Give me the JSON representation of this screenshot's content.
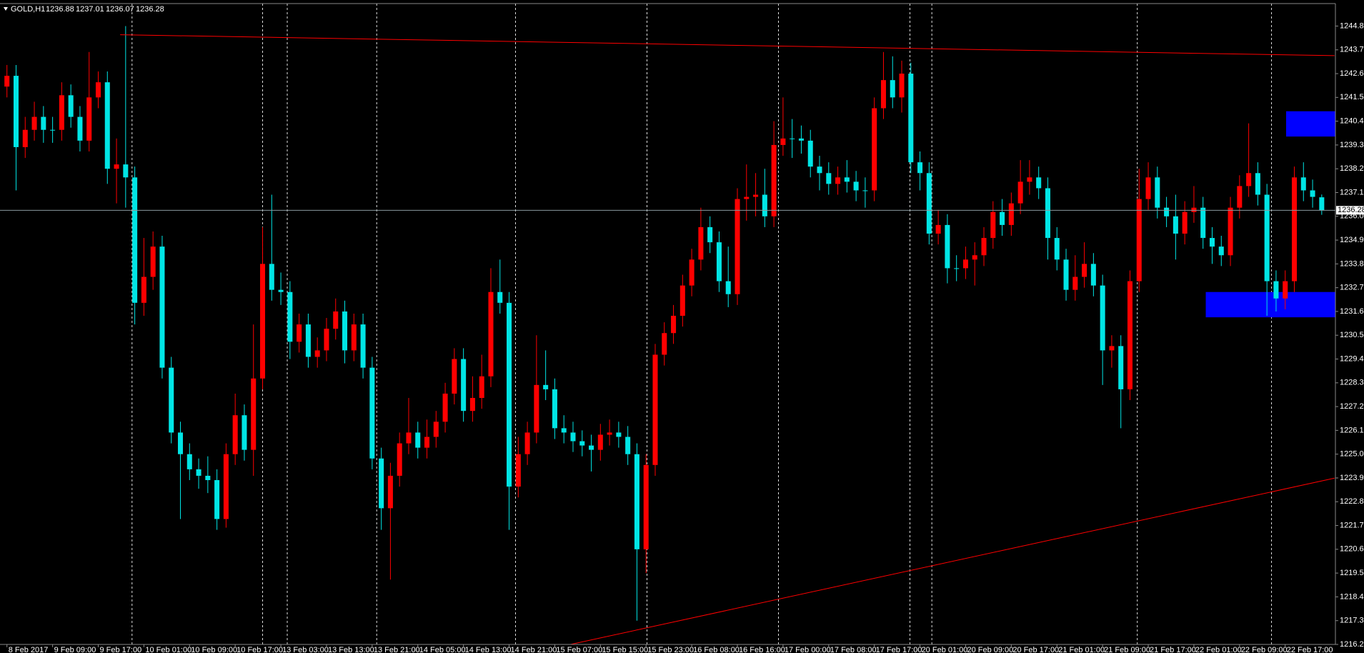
{
  "chart_data": {
    "type": "candlestick",
    "title": "GOLD,H1",
    "bull_color": "#ff0000",
    "bear_color": "#00e5e5",
    "open": [
      1242.0,
      1242.5,
      1239.2,
      1240.0,
      1240.6,
      1240.0,
      1240.0,
      1241.6,
      1240.6,
      1239.5,
      1241.5,
      1242.2,
      1238.2,
      1238.4,
      1237.8,
      1232.0,
      1233.2,
      1234.6,
      1229.0,
      1226.0,
      1225.0,
      1224.3,
      1224.0,
      1223.8,
      1222.0,
      1225.0,
      1226.8,
      1225.2,
      1228.5,
      1233.8,
      1232.6,
      1232.5,
      1230.2,
      1231.0,
      1229.5,
      1229.8,
      1230.8,
      1231.6,
      1229.8,
      1231.0,
      1229.0,
      1224.8,
      1222.5,
      1224.0,
      1225.5,
      1226.0,
      1225.3,
      1225.8,
      1226.5,
      1227.8,
      1229.4,
      1227.0,
      1227.6,
      1228.6,
      1232.5,
      1232.0,
      1223.5,
      1225.0,
      1226.0,
      1228.2,
      1228.0,
      1226.2,
      1226.0,
      1225.6,
      1225.4,
      1225.2,
      1225.9,
      1226.0,
      1225.8,
      1225.0,
      1220.6,
      1224.5,
      1229.6,
      1230.6,
      1231.4,
      1232.8,
      1234.0,
      1235.5,
      1234.8,
      1233.0,
      1232.4,
      1236.8,
      1236.9,
      1237.0,
      1236.0,
      1239.3,
      1239.6,
      1239.6,
      1239.5,
      1238.3,
      1238.0,
      1237.5,
      1237.8,
      1237.6,
      1237.2,
      1237.2,
      1241.0,
      1242.3,
      1241.5,
      1242.6,
      1238.5,
      1238.0,
      1235.2,
      1235.6,
      1233.6,
      1233.6,
      1234.0,
      1234.2,
      1235.0,
      1236.2,
      1235.6,
      1236.6,
      1237.6,
      1237.8,
      1237.3,
      1235.0,
      1234.0,
      1232.6,
      1233.2,
      1233.8,
      1232.8,
      1229.8,
      1230.0,
      1228.0,
      1233.0,
      1236.8,
      1237.8,
      1236.4,
      1236.0,
      1235.2,
      1236.2,
      1236.4,
      1235.0,
      1234.6,
      1234.2,
      1236.4,
      1237.4,
      1238.0,
      1237.0,
      1233.0,
      1232.2,
      1233.0,
      1237.8,
      1237.2,
      1236.88
    ],
    "high": [
      1243.0,
      1243.0,
      1240.6,
      1241.3,
      1241.1,
      1240.6,
      1242.2,
      1242.1,
      1241.1,
      1243.6,
      1242.7,
      1242.7,
      1239.6,
      1244.8,
      1238.3,
      1235.0,
      1235.3,
      1235.1,
      1229.5,
      1226.5,
      1225.5,
      1224.8,
      1224.9,
      1224.3,
      1225.5,
      1227.8,
      1227.3,
      1231.0,
      1235.5,
      1237.0,
      1233.4,
      1233.0,
      1231.5,
      1231.5,
      1230.4,
      1231.3,
      1232.2,
      1232.1,
      1231.5,
      1231.5,
      1229.5,
      1225.3,
      1224.6,
      1226.0,
      1227.6,
      1226.5,
      1226.6,
      1227.0,
      1228.3,
      1229.9,
      1229.9,
      1228.6,
      1229.6,
      1233.6,
      1234.0,
      1232.5,
      1225.8,
      1226.5,
      1230.5,
      1229.8,
      1228.5,
      1226.8,
      1226.5,
      1226.1,
      1225.9,
      1226.4,
      1226.6,
      1226.5,
      1226.3,
      1225.5,
      1225.0,
      1230.1,
      1231.1,
      1231.9,
      1233.3,
      1234.5,
      1236.4,
      1236.0,
      1235.3,
      1234.6,
      1237.3,
      1238.4,
      1238.0,
      1238.2,
      1240.4,
      1241.5,
      1240.5,
      1240.2,
      1240.0,
      1238.8,
      1238.5,
      1238.3,
      1238.6,
      1238.1,
      1237.8,
      1241.5,
      1243.6,
      1243.4,
      1243.2,
      1243.1,
      1239.0,
      1238.5,
      1236.3,
      1236.1,
      1234.2,
      1234.6,
      1234.8,
      1235.5,
      1236.7,
      1236.8,
      1237.1,
      1238.6,
      1238.6,
      1238.3,
      1237.8,
      1235.5,
      1234.5,
      1234.2,
      1234.8,
      1234.3,
      1233.3,
      1230.5,
      1230.5,
      1233.5,
      1238.2,
      1238.5,
      1238.3,
      1236.9,
      1237.0,
      1236.7,
      1237.4,
      1236.9,
      1235.5,
      1235.1,
      1236.9,
      1237.9,
      1240.3,
      1238.5,
      1237.5,
      1233.5,
      1233.5,
      1238.3,
      1238.5,
      1237.7,
      1237.01
    ],
    "low": [
      1241.5,
      1237.2,
      1238.7,
      1239.5,
      1239.4,
      1239.4,
      1239.5,
      1240.1,
      1239.0,
      1239.0,
      1241.0,
      1237.5,
      1236.6,
      1236.4,
      1231.0,
      1231.4,
      1232.6,
      1228.5,
      1225.5,
      1222.0,
      1223.8,
      1223.4,
      1223.2,
      1221.5,
      1221.6,
      1224.5,
      1224.7,
      1224.0,
      1228.0,
      1232.1,
      1231.9,
      1229.4,
      1229.7,
      1229.0,
      1229.0,
      1229.3,
      1230.3,
      1229.2,
      1229.3,
      1228.5,
      1224.3,
      1221.5,
      1219.2,
      1223.5,
      1225.0,
      1224.8,
      1224.8,
      1225.3,
      1226.0,
      1227.3,
      1226.5,
      1226.5,
      1227.1,
      1228.1,
      1231.5,
      1221.5,
      1223.0,
      1224.5,
      1225.5,
      1227.5,
      1225.7,
      1225.5,
      1225.1,
      1224.9,
      1224.2,
      1224.7,
      1225.4,
      1225.3,
      1224.5,
      1217.3,
      1219.5,
      1224.0,
      1229.1,
      1230.1,
      1230.9,
      1232.3,
      1233.5,
      1234.3,
      1232.5,
      1231.8,
      1231.9,
      1235.8,
      1236.0,
      1235.5,
      1235.5,
      1238.8,
      1238.7,
      1238.9,
      1237.8,
      1237.2,
      1237.0,
      1237.0,
      1237.1,
      1236.7,
      1236.4,
      1236.7,
      1240.5,
      1241.0,
      1240.8,
      1238.0,
      1237.2,
      1234.7,
      1234.7,
      1232.9,
      1233.0,
      1233.1,
      1232.8,
      1233.7,
      1234.5,
      1235.1,
      1235.1,
      1236.1,
      1237.0,
      1236.8,
      1234.0,
      1233.5,
      1232.1,
      1232.1,
      1232.7,
      1232.3,
      1228.2,
      1229.0,
      1226.2,
      1227.5,
      1232.5,
      1236.3,
      1235.9,
      1235.5,
      1234.0,
      1234.7,
      1235.7,
      1234.5,
      1233.8,
      1233.7,
      1233.7,
      1235.9,
      1236.9,
      1236.5,
      1231.4,
      1231.6,
      1231.7,
      1232.5,
      1236.7,
      1236.4,
      1236.07
    ],
    "close": [
      1242.5,
      1239.2,
      1240.0,
      1240.6,
      1240.0,
      1240.0,
      1241.6,
      1240.6,
      1239.5,
      1241.5,
      1242.2,
      1238.2,
      1238.4,
      1237.8,
      1232.0,
      1233.2,
      1234.6,
      1229.0,
      1226.0,
      1225.0,
      1224.3,
      1224.0,
      1223.8,
      1222.0,
      1225.0,
      1226.8,
      1225.2,
      1228.5,
      1233.8,
      1232.6,
      1232.5,
      1230.2,
      1231.0,
      1229.5,
      1229.8,
      1230.8,
      1231.6,
      1229.8,
      1231.0,
      1229.0,
      1224.8,
      1222.5,
      1224.0,
      1225.5,
      1226.0,
      1225.3,
      1225.8,
      1226.5,
      1227.8,
      1229.4,
      1227.0,
      1227.6,
      1228.6,
      1232.5,
      1232.0,
      1223.5,
      1225.0,
      1226.0,
      1228.2,
      1228.0,
      1226.2,
      1226.0,
      1225.6,
      1225.4,
      1225.2,
      1225.9,
      1226.0,
      1225.8,
      1225.0,
      1220.6,
      1224.5,
      1229.6,
      1230.6,
      1231.4,
      1232.8,
      1234.0,
      1235.5,
      1234.8,
      1233.0,
      1232.4,
      1236.8,
      1236.9,
      1237.0,
      1236.0,
      1239.3,
      1239.6,
      1239.6,
      1239.5,
      1238.3,
      1238.0,
      1237.5,
      1237.8,
      1237.6,
      1237.2,
      1237.2,
      1241.0,
      1242.3,
      1241.5,
      1242.6,
      1238.5,
      1238.0,
      1235.2,
      1235.6,
      1233.6,
      1233.6,
      1234.0,
      1234.2,
      1235.0,
      1236.2,
      1235.6,
      1236.6,
      1237.6,
      1237.8,
      1237.3,
      1235.0,
      1234.0,
      1232.6,
      1233.2,
      1233.8,
      1232.8,
      1229.8,
      1230.0,
      1228.0,
      1233.0,
      1236.8,
      1237.8,
      1236.4,
      1236.0,
      1235.2,
      1236.2,
      1236.4,
      1235.0,
      1234.6,
      1234.2,
      1236.4,
      1237.4,
      1238.0,
      1237.0,
      1233.0,
      1232.2,
      1233.0,
      1237.8,
      1237.2,
      1236.9,
      1236.28
    ],
    "xlim": [
      -0.76,
      145.5
    ],
    "ylim": [
      1216.2,
      1245.84
    ],
    "yticks": [
      {
        "value": 1244.8,
        "label": "1244.80"
      },
      {
        "value": 1243.7,
        "label": "1243.70"
      },
      {
        "value": 1242.6,
        "label": "1242.60"
      },
      {
        "value": 1241.5,
        "label": "1241.50"
      },
      {
        "value": 1240.4,
        "label": "1240.40"
      },
      {
        "value": 1239.3,
        "label": "1239.30"
      },
      {
        "value": 1238.2,
        "label": "1238.20"
      },
      {
        "value": 1237.1,
        "label": "1237.10"
      },
      {
        "value": 1236.0,
        "label": "1236.00"
      },
      {
        "value": 1234.9,
        "label": "1234.90"
      },
      {
        "value": 1233.8,
        "label": "1233.80"
      },
      {
        "value": 1232.7,
        "label": "1232.70"
      },
      {
        "value": 1231.6,
        "label": "1231.60"
      },
      {
        "value": 1230.5,
        "label": "1230.50"
      },
      {
        "value": 1229.4,
        "label": "1229.40"
      },
      {
        "value": 1228.3,
        "label": "1228.30"
      },
      {
        "value": 1227.2,
        "label": "1227.20"
      },
      {
        "value": 1226.1,
        "label": "1226.10"
      },
      {
        "value": 1225.0,
        "label": "1225.00"
      },
      {
        "value": 1223.9,
        "label": "1223.90"
      },
      {
        "value": 1222.8,
        "label": "1222.80"
      },
      {
        "value": 1221.7,
        "label": "1221.70"
      },
      {
        "value": 1220.6,
        "label": "1220.60"
      },
      {
        "value": 1219.5,
        "label": "1219.50"
      },
      {
        "value": 1218.4,
        "label": "1218.40"
      },
      {
        "value": 1217.3,
        "label": "1217.30"
      },
      {
        "value": 1216.2,
        "label": "1216.20"
      }
    ],
    "xticks": [
      {
        "value": 0,
        "label": "8 Feb 2017"
      },
      {
        "value": 5,
        "label": "9 Feb 09:00"
      },
      {
        "value": 10,
        "label": "9 Feb 17:00"
      },
      {
        "value": 15,
        "label": "10 Feb 01:00"
      },
      {
        "value": 20,
        "label": "10 Feb 09:00"
      },
      {
        "value": 25,
        "label": "10 Feb 17:00"
      },
      {
        "value": 30,
        "label": "13 Feb 03:00"
      },
      {
        "value": 35,
        "label": "13 Feb 13:00"
      },
      {
        "value": 40,
        "label": "13 Feb 21:00"
      },
      {
        "value": 45,
        "label": "14 Feb 05:00"
      },
      {
        "value": 50,
        "label": "14 Feb 13:00"
      },
      {
        "value": 55,
        "label": "14 Feb 21:00"
      },
      {
        "value": 60,
        "label": "15 Feb 07:00"
      },
      {
        "value": 65,
        "label": "15 Feb 15:00"
      },
      {
        "value": 70,
        "label": "15 Feb 23:00"
      },
      {
        "value": 75,
        "label": "16 Feb 08:00"
      },
      {
        "value": 80,
        "label": "16 Feb 16:00"
      },
      {
        "value": 85,
        "label": "17 Feb 00:00"
      },
      {
        "value": 90,
        "label": "17 Feb 08:00"
      },
      {
        "value": 95,
        "label": "17 Feb 17:00"
      },
      {
        "value": 100,
        "label": "20 Feb 01:00"
      },
      {
        "value": 105,
        "label": "20 Feb 09:00"
      },
      {
        "value": 110,
        "label": "20 Feb 17:00"
      },
      {
        "value": 115,
        "label": "21 Feb 01:00"
      },
      {
        "value": 120,
        "label": "21 Feb 09:00"
      },
      {
        "value": 125,
        "label": "21 Feb 17:00"
      },
      {
        "value": 130,
        "label": "22 Feb 01:00"
      },
      {
        "value": 135,
        "label": "22 Feb 09:00"
      },
      {
        "value": 140,
        "label": "22 Feb 17:00"
      }
    ],
    "separators": [
      13.7,
      28,
      30.7,
      40.5,
      55.7,
      70.1,
      84.5,
      98.9,
      101.3,
      123.8,
      138.5
    ],
    "trendlines": [
      {
        "color": "#ff0000",
        "x": [
          12.4,
          145.4
        ],
        "y": [
          1244.4,
          1243.43
        ]
      },
      {
        "color": "#ff0000",
        "x": [
          60.2,
          145.4
        ],
        "y": [
          1216.06,
          1223.89
        ]
      }
    ],
    "zones": [
      {
        "color": "#0000ff",
        "x": [
          140.1,
          145.5
        ],
        "y": [
          1239.69,
          1240.86
        ]
      },
      {
        "color": "#0000ff",
        "x": [
          131.3,
          145.5
        ],
        "y": [
          1231.33,
          1232.5
        ]
      }
    ]
  }
}
